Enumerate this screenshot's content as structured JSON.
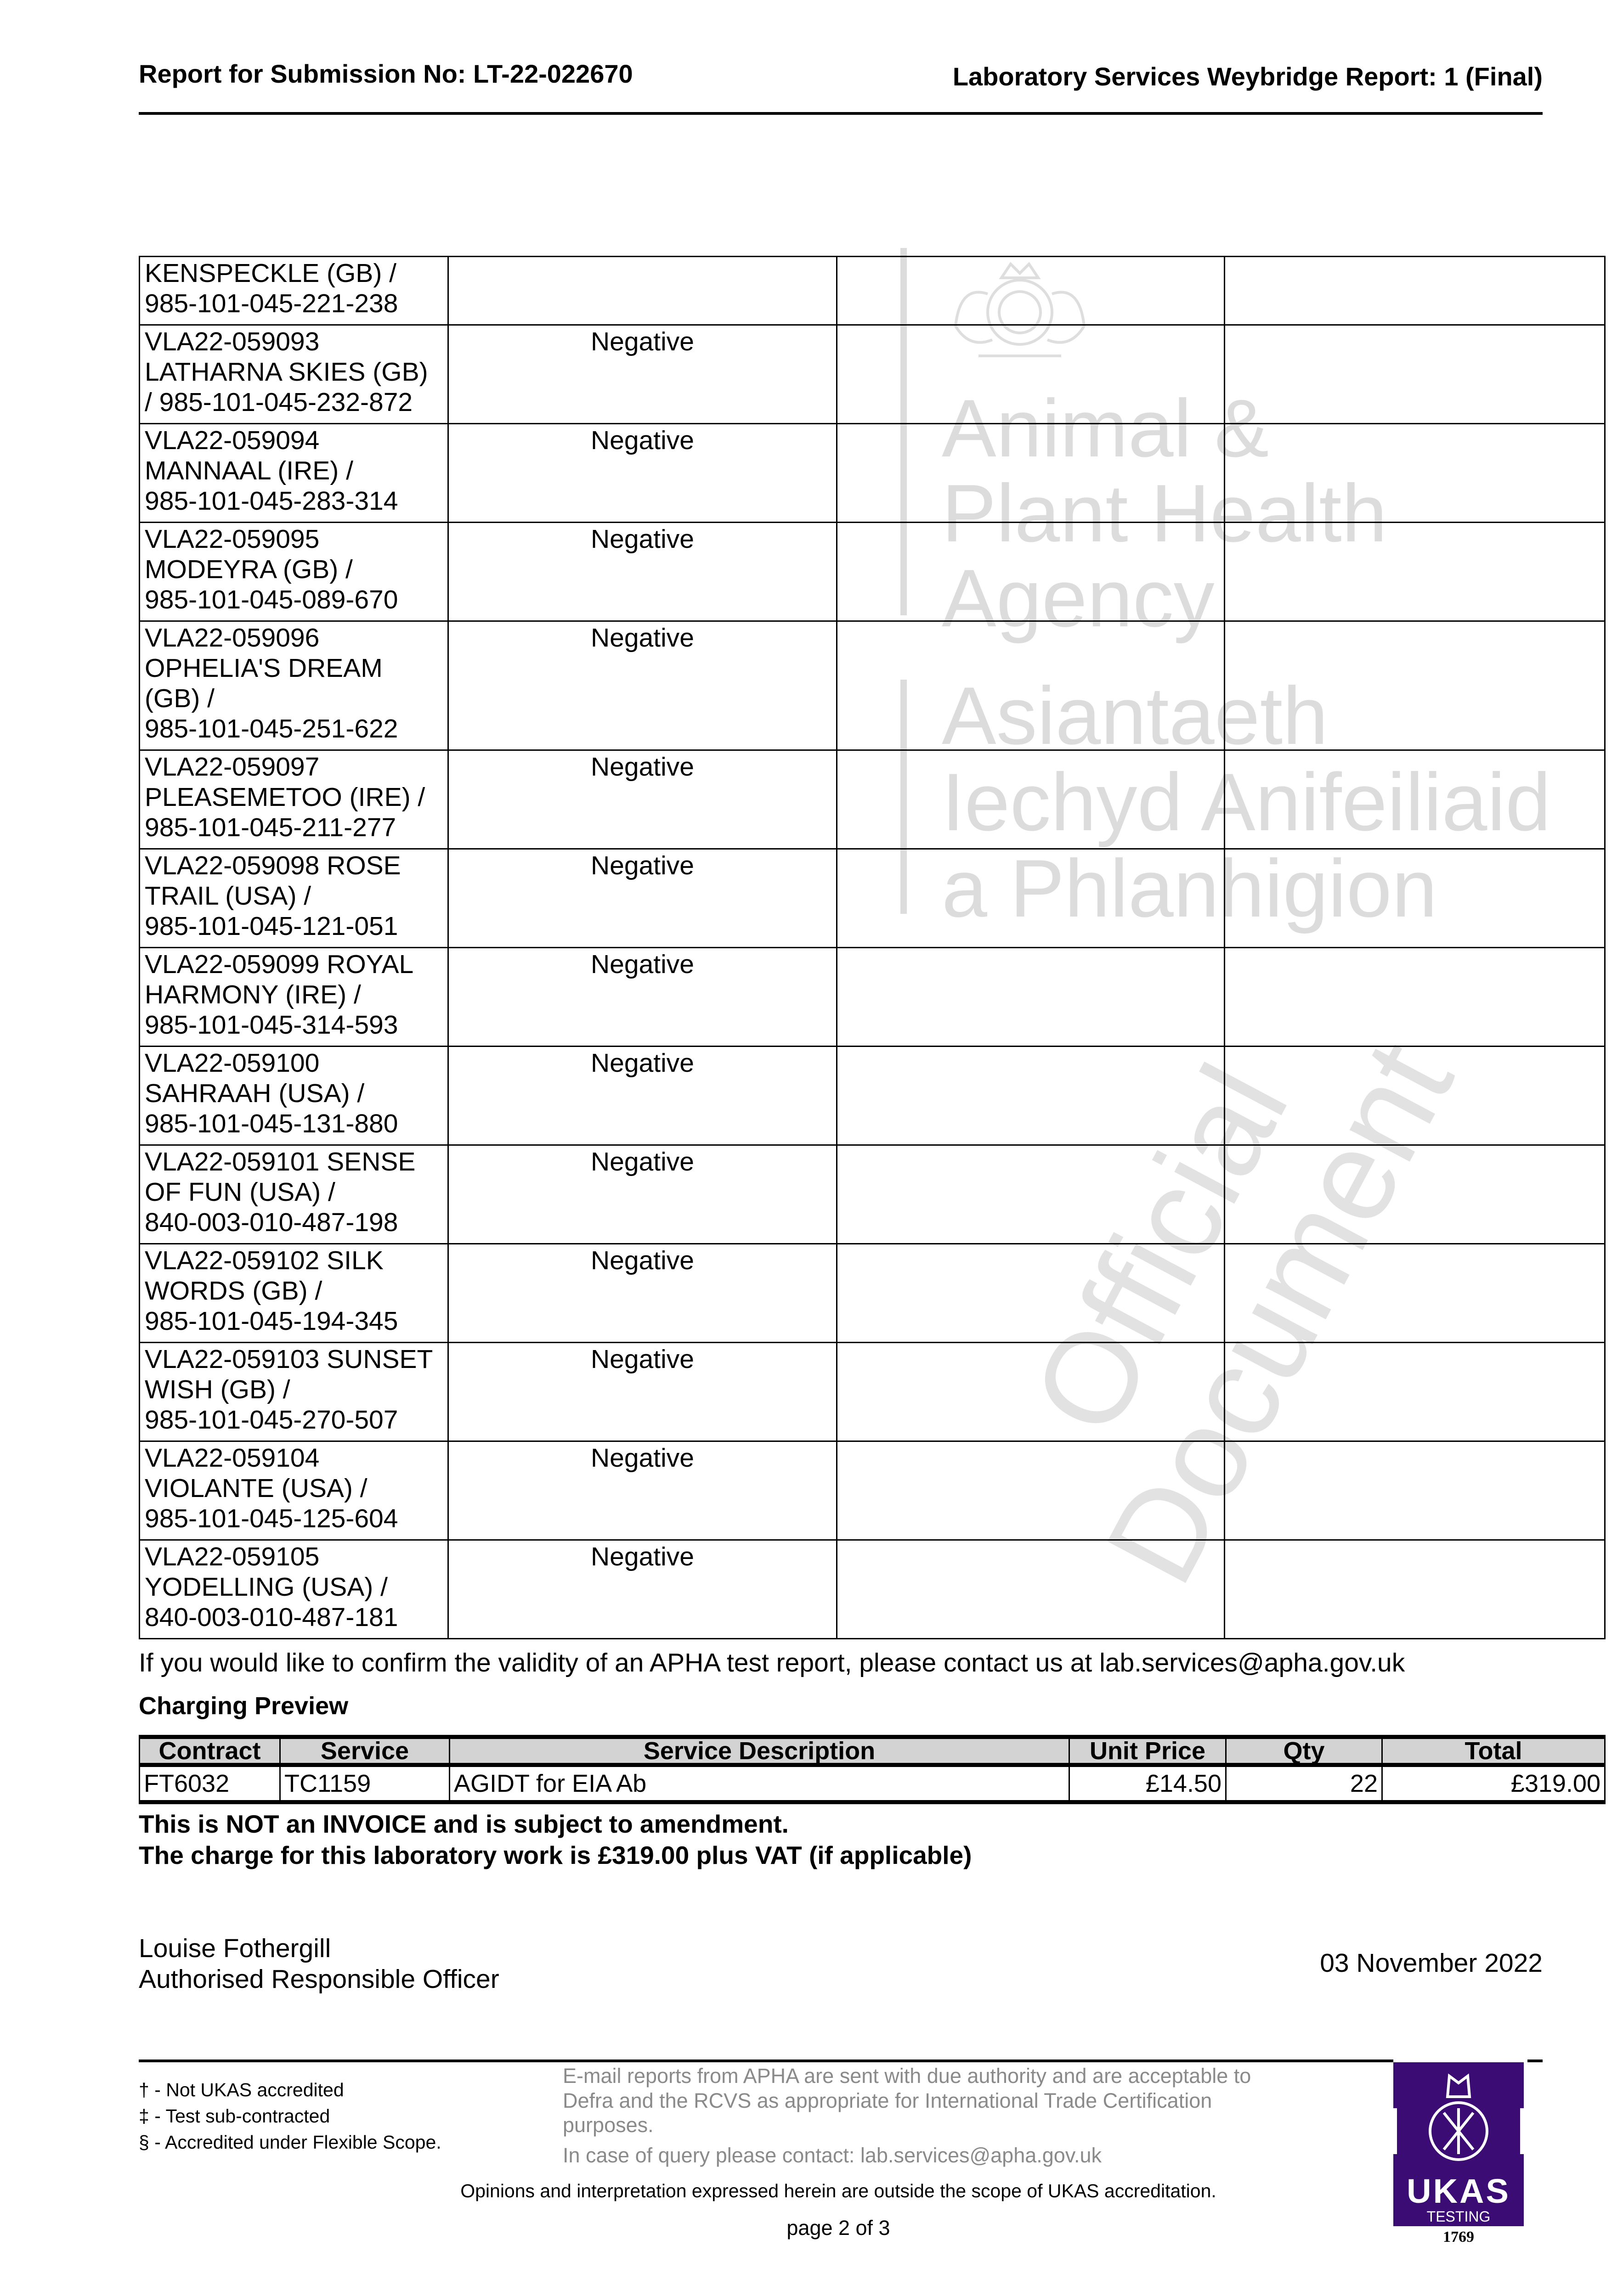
{
  "header": {
    "left": "Report for Submission No: LT-22-022670",
    "right": "Laboratory Services Weybridge Report: 1 (Final)"
  },
  "watermark": {
    "agency_en": [
      "Animal &",
      "Plant Health",
      "Agency"
    ],
    "agency_cy": [
      "Asiantaeth",
      "Iechyd Anifeiliaid",
      "a Phlanhigion"
    ],
    "diagonal": [
      "Official",
      "Document"
    ],
    "crest_icon": "royal-coat-of-arms"
  },
  "results": [
    {
      "sample": "KENSPECKLE (GB) /\n985-101-045-221-238",
      "result": "",
      "c3": "",
      "c4": ""
    },
    {
      "sample": "VLA22-059093\nLATHARNA SKIES (GB)\n/ 985-101-045-232-872",
      "result": "Negative",
      "c3": "",
      "c4": ""
    },
    {
      "sample": "VLA22-059094\nMANNAAL (IRE) /\n985-101-045-283-314",
      "result": "Negative",
      "c3": "",
      "c4": ""
    },
    {
      "sample": "VLA22-059095\nMODEYRA (GB) /\n985-101-045-089-670",
      "result": "Negative",
      "c3": "",
      "c4": ""
    },
    {
      "sample": "VLA22-059096\nOPHELIA'S DREAM\n(GB) /\n985-101-045-251-622",
      "result": "Negative",
      "c3": "",
      "c4": ""
    },
    {
      "sample": "VLA22-059097\nPLEASEMETOO (IRE) /\n985-101-045-211-277",
      "result": "Negative",
      "c3": "",
      "c4": ""
    },
    {
      "sample": "VLA22-059098 ROSE\nTRAIL (USA) /\n985-101-045-121-051",
      "result": "Negative",
      "c3": "",
      "c4": ""
    },
    {
      "sample": "VLA22-059099 ROYAL\nHARMONY (IRE) /\n985-101-045-314-593",
      "result": "Negative",
      "c3": "",
      "c4": ""
    },
    {
      "sample": "VLA22-059100\nSAHRAAH (USA) /\n985-101-045-131-880",
      "result": "Negative",
      "c3": "",
      "c4": ""
    },
    {
      "sample": "VLA22-059101 SENSE\nOF FUN (USA) /\n840-003-010-487-198",
      "result": "Negative",
      "c3": "",
      "c4": ""
    },
    {
      "sample": "VLA22-059102 SILK\nWORDS (GB) /\n985-101-045-194-345",
      "result": "Negative",
      "c3": "",
      "c4": ""
    },
    {
      "sample": "VLA22-059103 SUNSET\nWISH (GB) /\n985-101-045-270-507",
      "result": "Negative",
      "c3": "",
      "c4": ""
    },
    {
      "sample": "VLA22-059104\nVIOLANTE (USA) /\n985-101-045-125-604",
      "result": "Negative",
      "c3": "",
      "c4": ""
    },
    {
      "sample": "VLA22-059105\nYODELLING (USA) /\n840-003-010-487-181",
      "result": "Negative",
      "c3": "",
      "c4": ""
    }
  ],
  "confirm_text": "If you would like to confirm the validity of an APHA test report, please contact us at lab.services@apha.gov.uk",
  "charging": {
    "title": "Charging Preview",
    "headers": [
      "Contract",
      "Service",
      "Service Description",
      "Unit Price",
      "Qty",
      "Total"
    ],
    "row": [
      "FT6032",
      "TC1159",
      "AGIDT for EIA Ab",
      "£14.50",
      "22",
      "£319.00"
    ],
    "notice1": "This is NOT an INVOICE and is subject to amendment.",
    "notice2": "The charge for this laboratory work is £319.00 plus VAT (if applicable)"
  },
  "signature": {
    "name": "Louise Fothergill",
    "role": "Authorised Responsible Officer",
    "date": "03 November 2022"
  },
  "footer": {
    "notes": [
      "† - Not UKAS accredited",
      "‡ - Test sub-contracted",
      "§ - Accredited under Flexible Scope."
    ],
    "email_lines": [
      "E-mail reports from APHA are sent with due authority and are acceptable to",
      "Defra and the RCVS as appropriate for International Trade Certification",
      "purposes."
    ],
    "query": "In case of query please contact: lab.services@apha.gov.uk",
    "opinions": "Opinions and interpretation expressed herein are outside the scope of UKAS accreditation.",
    "page": "page 2 of 3",
    "ukas": {
      "name": "UKAS",
      "sub": "TESTING",
      "number": "1769",
      "color": "#3a0c74"
    }
  }
}
